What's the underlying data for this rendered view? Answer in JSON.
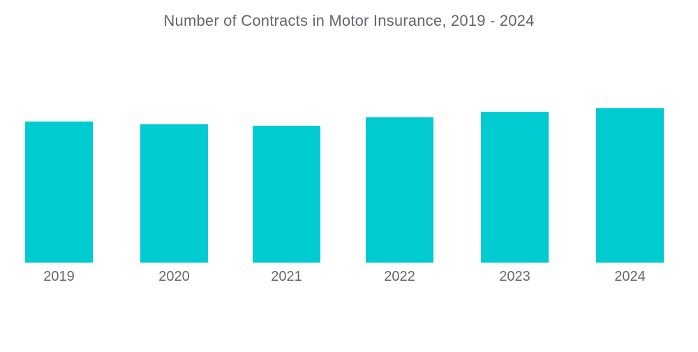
{
  "colors": {
    "background": "#FFFFFF",
    "bar": "#00CBD0",
    "text": "#63666B"
  },
  "chart_data": {
    "type": "bar",
    "title": "Number of Contracts in Motor Insurance, 2019 - 2024",
    "categories": [
      "2019",
      "2020",
      "2021",
      "2022",
      "2023",
      "2024"
    ],
    "values_relative_index": [
      91.4,
      89.6,
      88.7,
      94.1,
      97.7,
      100
    ],
    "xlabel": "",
    "ylabel": "",
    "value_axis_visible": false,
    "data_labels_visible": false,
    "gridlines": false,
    "legend": false,
    "note": "No numeric y-axis or data labels are shown in the chart; values are relative bar heights indexed to 2024 = 100."
  }
}
